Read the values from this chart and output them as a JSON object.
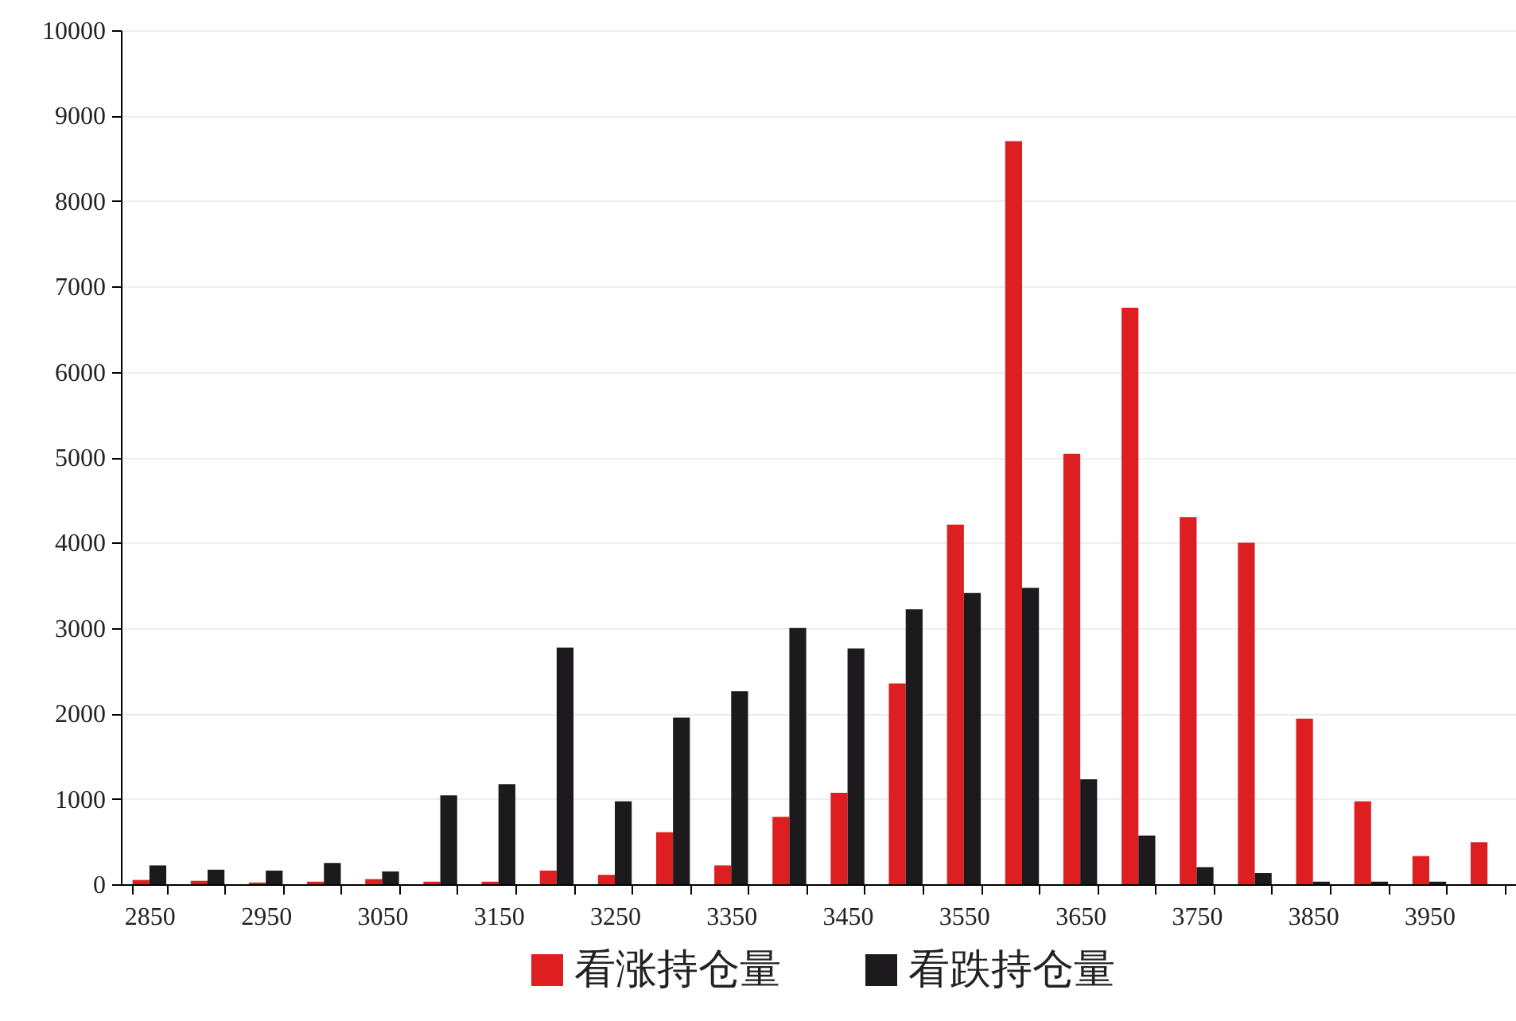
{
  "chart_data": {
    "type": "bar",
    "categories": [
      "2850",
      null,
      "2950",
      null,
      "3050",
      null,
      "3150",
      null,
      "3250",
      null,
      "3350",
      null,
      "3450",
      null,
      "3550",
      null,
      "3650",
      null,
      "3750",
      null,
      "3850",
      null,
      "3950",
      null
    ],
    "series": [
      {
        "name": "看涨持仓量",
        "color": "#dd1f22",
        "values": [
          50,
          40,
          20,
          30,
          60,
          30,
          30,
          160,
          110,
          610,
          220,
          790,
          1070,
          2350,
          4210,
          8700,
          5040,
          6750,
          4300,
          4000,
          1940,
          970,
          330,
          490
        ]
      },
      {
        "name": "看跌持仓量",
        "color": "#1c1a1d",
        "values": [
          220,
          170,
          160,
          250,
          150,
          1040,
          1170,
          2770,
          970,
          1950,
          2260,
          3000,
          2760,
          3220,
          3410,
          3470,
          1230,
          570,
          200,
          130,
          30,
          30,
          30,
          0
        ]
      }
    ],
    "ylim": [
      0,
      10000
    ],
    "yticks": [
      0,
      1000,
      2000,
      3000,
      4000,
      5000,
      6000,
      7000,
      8000,
      9000,
      10000
    ],
    "grid": "y",
    "legend": "bottom"
  }
}
